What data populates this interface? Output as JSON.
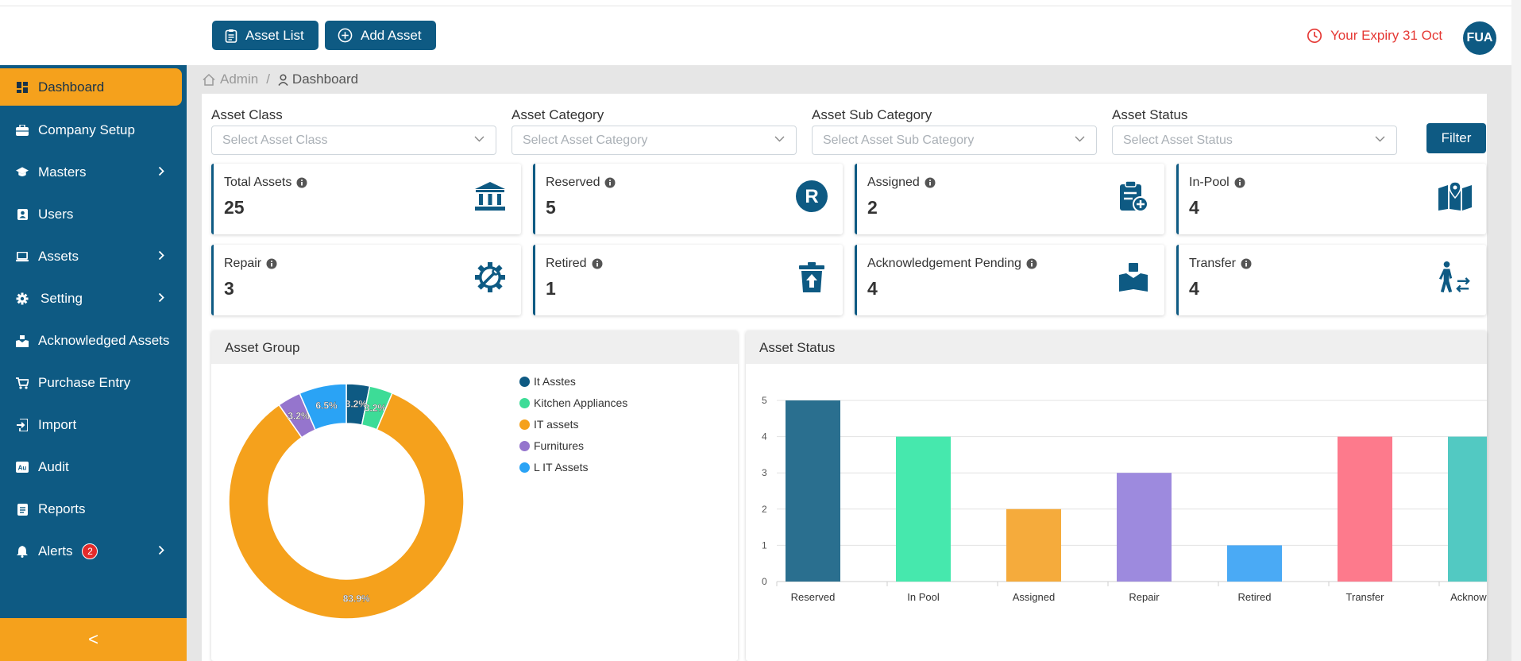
{
  "topbar": {
    "asset_list_label": "Asset List",
    "add_asset_label": "Add Asset",
    "expiry_text": "Your Expiry 31 Oct",
    "avatar_initials": "FUA",
    "expiry_color": "#e53935",
    "brand_color": "#0e5a83",
    "accent_color": "#f5a11c"
  },
  "sidebar": {
    "items": [
      {
        "label": "Dashboard",
        "icon": "dashboard-icon",
        "active": true
      },
      {
        "label": "Company Setup",
        "icon": "briefcase-icon"
      },
      {
        "label": "Masters",
        "icon": "graduation-cap-icon",
        "has_submenu": true
      },
      {
        "label": "Users",
        "icon": "user-card-icon"
      },
      {
        "label": "Assets",
        "icon": "laptop-icon",
        "has_submenu": true
      },
      {
        "label": "Setting",
        "icon": "gear-icon",
        "has_submenu": true
      },
      {
        "label": "Acknowledged Assets",
        "icon": "hand-box-icon"
      },
      {
        "label": "Purchase Entry",
        "icon": "cart-icon"
      },
      {
        "label": "Import",
        "icon": "import-icon"
      },
      {
        "label": "Audit",
        "icon": "audit-icon"
      },
      {
        "label": "Reports",
        "icon": "report-icon"
      },
      {
        "label": "Alerts",
        "icon": "bell-icon",
        "has_submenu": true,
        "badge": "2"
      }
    ],
    "collapse_symbol": "<"
  },
  "breadcrumb": {
    "root": "Admin",
    "separator": "/",
    "current": "Dashboard"
  },
  "filters": {
    "asset_class": {
      "label": "Asset Class",
      "placeholder": "Select Asset Class"
    },
    "asset_category": {
      "label": "Asset Category",
      "placeholder": "Select Asset Category"
    },
    "asset_sub_category": {
      "label": "Asset Sub Category",
      "placeholder": "Select Asset Sub Category"
    },
    "asset_status": {
      "label": "Asset Status",
      "placeholder": "Select Asset Status"
    },
    "filter_button": "Filter"
  },
  "cards": [
    {
      "title": "Total Assets",
      "value": "25",
      "icon": "bank-icon"
    },
    {
      "title": "Reserved",
      "value": "5",
      "icon": "reserved-r-icon"
    },
    {
      "title": "Assigned",
      "value": "2",
      "icon": "clipboard-plus-icon"
    },
    {
      "title": "In-Pool",
      "value": "4",
      "icon": "map-pin-icon"
    },
    {
      "title": "Repair",
      "value": "3",
      "icon": "repair-gear-icon"
    },
    {
      "title": "Retired",
      "value": "1",
      "icon": "trash-upload-icon"
    },
    {
      "title": "Acknowledgement Pending",
      "value": "4",
      "icon": "hand-box-icon"
    },
    {
      "title": "Transfer",
      "value": "4",
      "icon": "person-transfer-icon"
    }
  ],
  "asset_group": {
    "title": "Asset Group",
    "chart_data": {
      "type": "pie",
      "variant": "doughnut",
      "labels": [
        "It Asstes",
        "Kitchen Appliances",
        "IT assets",
        "Furnitures",
        "L IT Assets"
      ],
      "values": [
        3.2,
        3.2,
        83.9,
        3.2,
        6.5
      ],
      "value_labels": [
        "3.2%",
        "3.2%",
        "83.9%",
        "3.2%",
        "6.5%"
      ],
      "colors": [
        "#0e5a83",
        "#3ddc97",
        "#f5a11c",
        "#9575cd",
        "#2aa3f5"
      ],
      "legend_position": "right"
    }
  },
  "asset_status": {
    "title": "Asset Status",
    "chart_data": {
      "type": "bar",
      "categories": [
        "Reserved",
        "In Pool",
        "Assigned",
        "Repair",
        "Retired",
        "Transfer",
        "Acknowled"
      ],
      "values": [
        5,
        4,
        2,
        3,
        1,
        4,
        4
      ],
      "colors": [
        "#2a6f8f",
        "#46e8ad",
        "#f5ab3c",
        "#9d8ade",
        "#4aaaf5",
        "#fd7a8c",
        "#52c9c2"
      ],
      "ylim": [
        0,
        5
      ],
      "yticks": [
        "0",
        "1",
        "2",
        "3",
        "4",
        "5"
      ],
      "grid": true
    }
  }
}
